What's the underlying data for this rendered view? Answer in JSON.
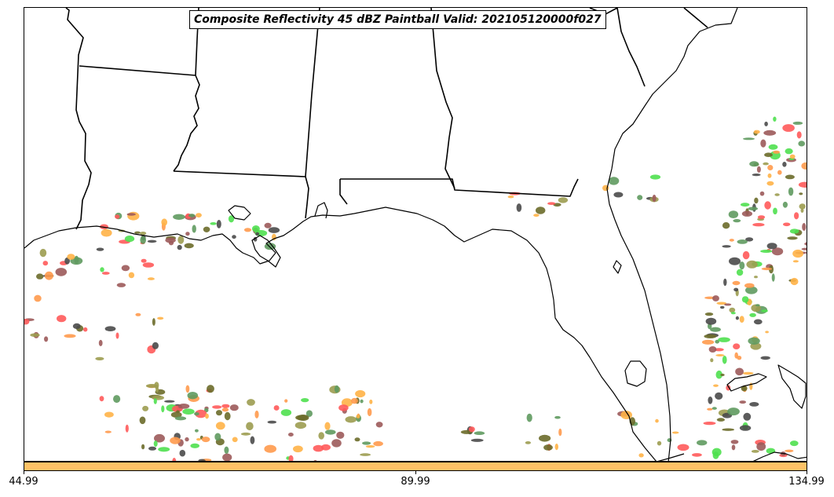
{
  "title": "Composite Reflectivity 45 dBZ Paintball Valid: 202105120000f027",
  "colorbar": {
    "fill_color": "#ffc266",
    "tick_labels": [
      "44.99",
      "89.99",
      "134.99"
    ]
  },
  "member_colors": [
    "#ff5a5a",
    "#ffb347",
    "#ff9a4d",
    "#9c5a5a",
    "#4a4a4a",
    "#5f9a5f",
    "#9c9c50",
    "#4fe04f",
    "#6b6b2a"
  ],
  "map": {
    "coastline_color": "#000000",
    "border_color": "#000000",
    "background": "#ffffff"
  }
}
